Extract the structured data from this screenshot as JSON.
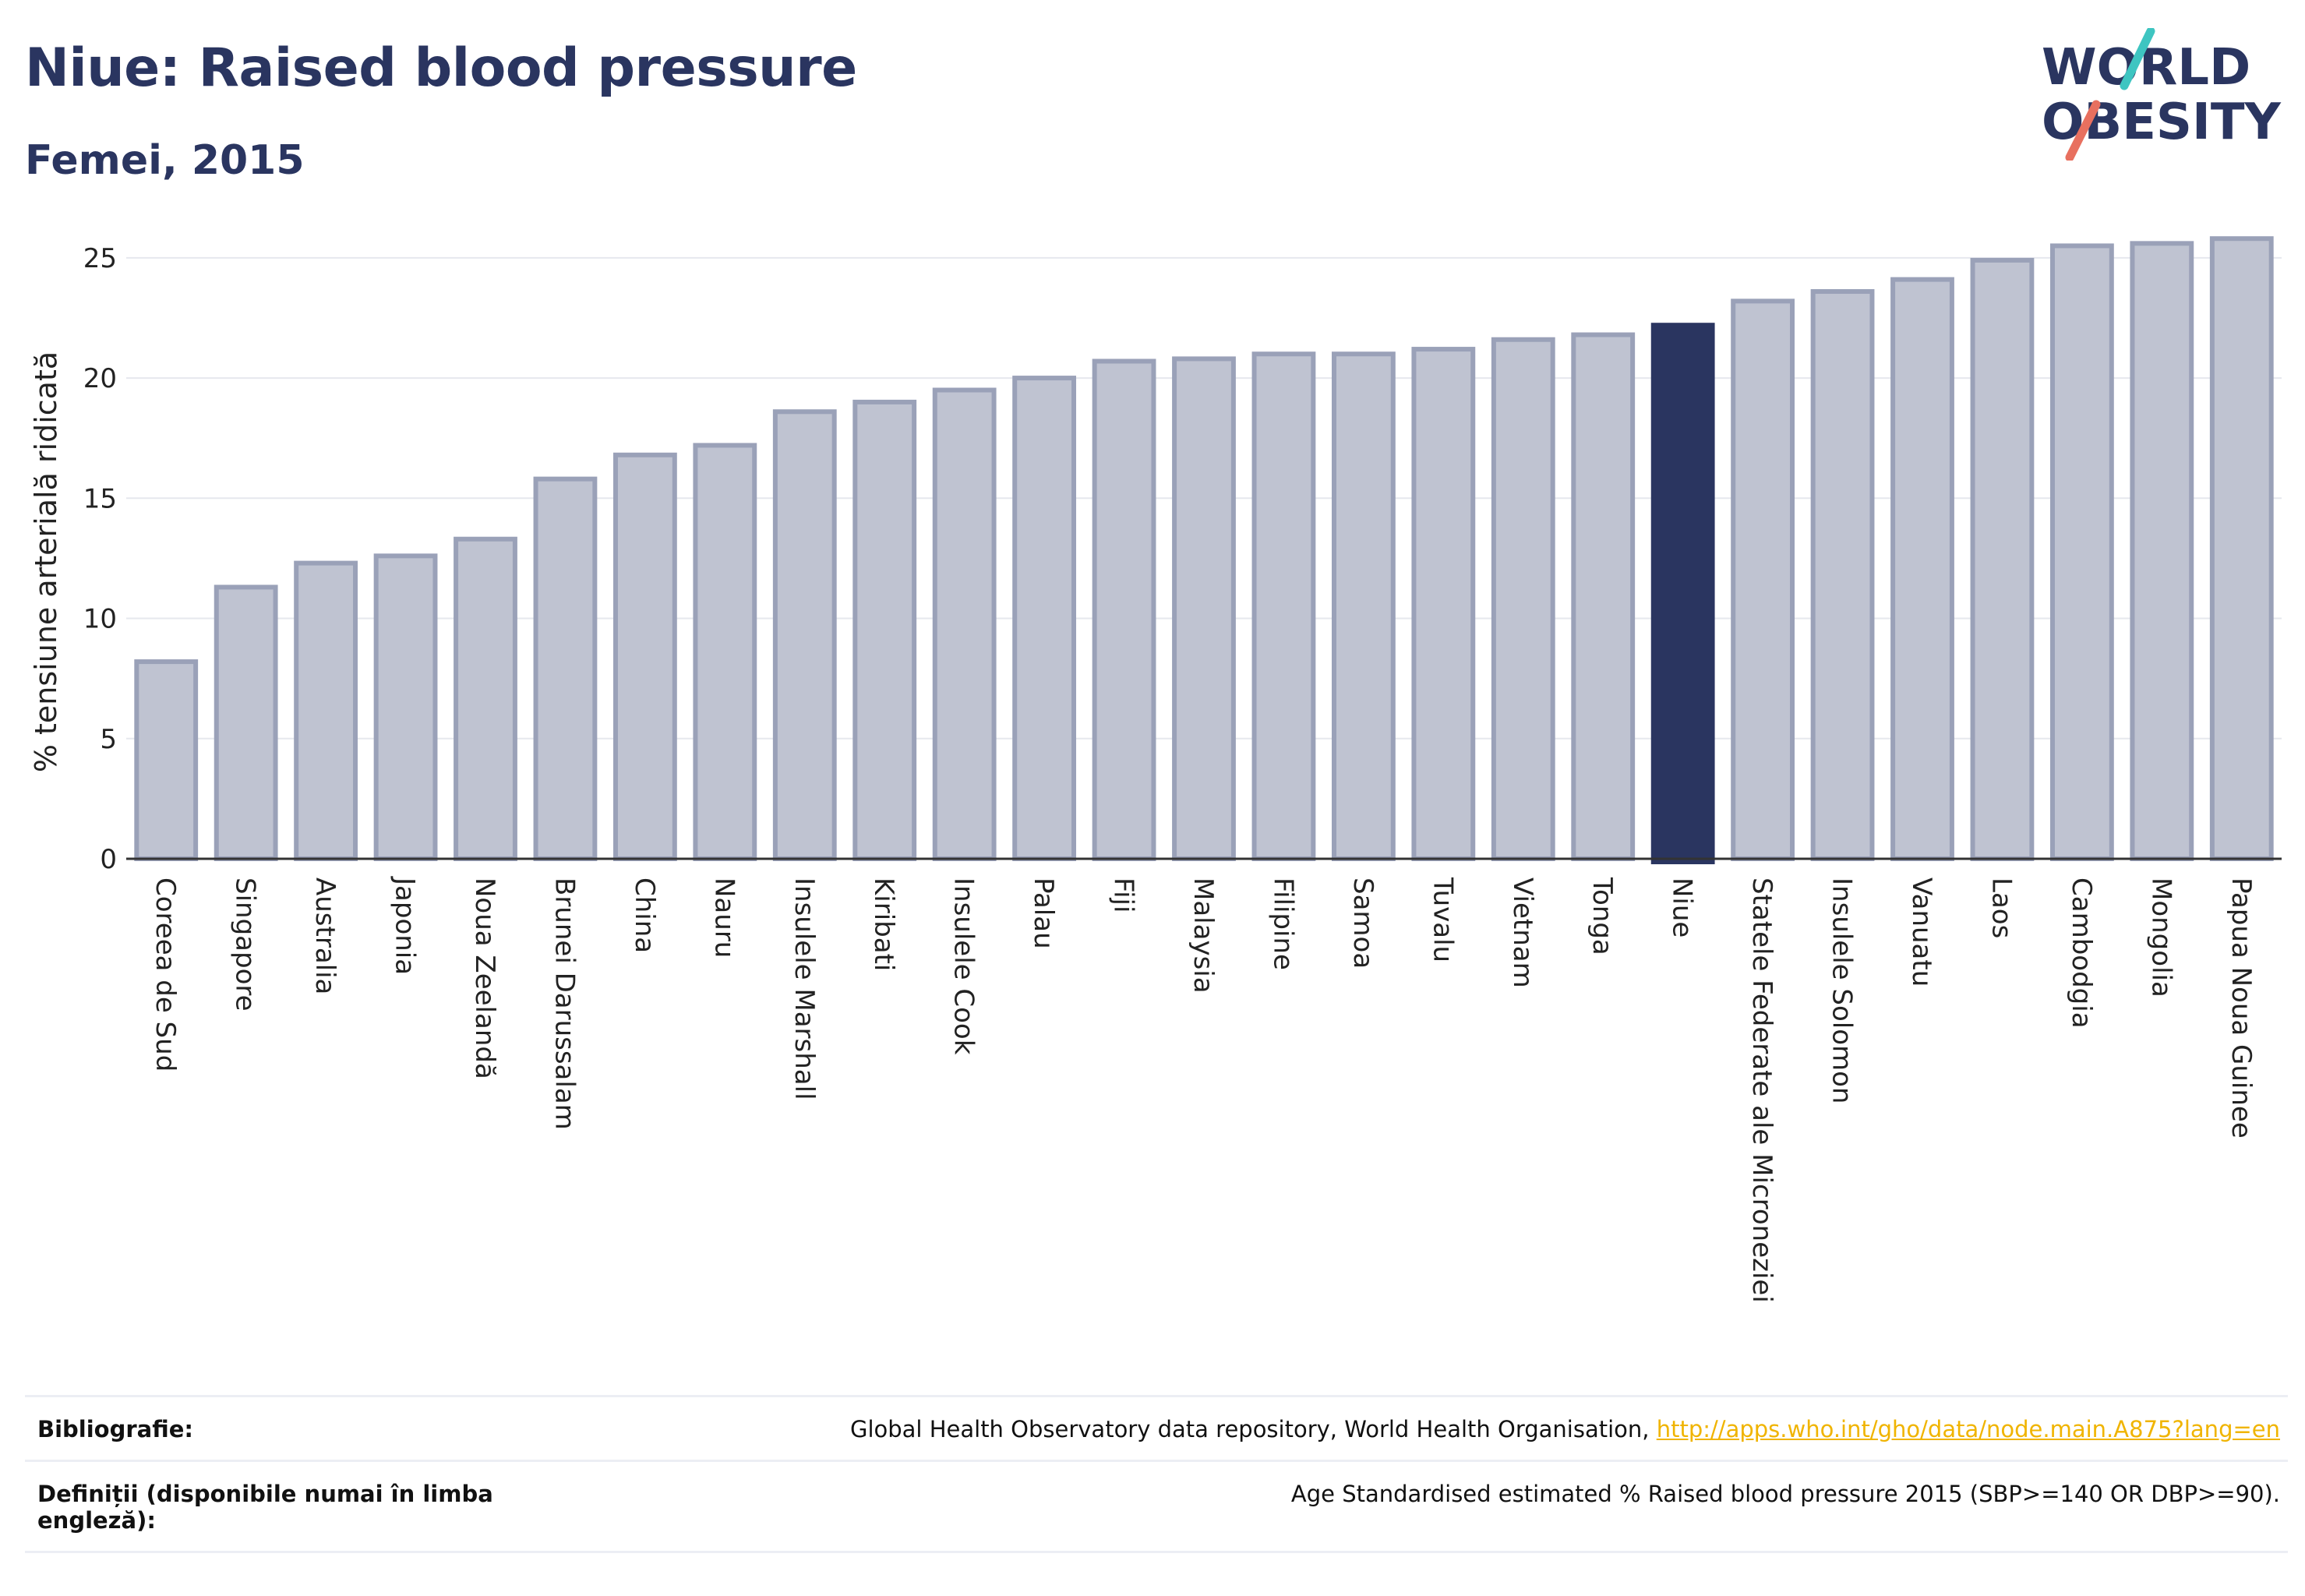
{
  "header": {
    "title": "Niue: Raised blood pressure",
    "subtitle": "Femei, 2015"
  },
  "logo": {
    "line1": "WORLD",
    "line2": "OBESITY",
    "accent_teal": "#3ec5c1",
    "accent_coral": "#e8705f",
    "text_color": "#2a3560"
  },
  "chart_data": {
    "type": "bar",
    "ylabel": "% tensiune arterială ridicată",
    "ylim": [
      0,
      26
    ],
    "yticks": [
      0,
      5,
      10,
      15,
      20,
      25
    ],
    "grid": true,
    "highlight": "Niue",
    "colors": {
      "bar": "#bfc3d1",
      "bar_edge": "#9aa1b8",
      "highlight": "#2a3560"
    },
    "categories": [
      "Coreea de Sud",
      "Singapore",
      "Australia",
      "Japonia",
      "Noua Zeelandă",
      "Brunei Darussalam",
      "China",
      "Nauru",
      "Insulele Marshall",
      "Kiribati",
      "Insulele Cook",
      "Palau",
      "Fiji",
      "Malaysia",
      "Filipine",
      "Samoa",
      "Tuvalu",
      "Vietnam",
      "Tonga",
      "Niue",
      "Statele Federate ale Microneziei",
      "Insulele Solomon",
      "Vanuatu",
      "Laos",
      "Cambodgia",
      "Mongolia",
      "Papua Noua Guinee"
    ],
    "values": [
      8.2,
      11.3,
      12.3,
      12.6,
      13.3,
      15.8,
      16.8,
      17.2,
      18.6,
      19.0,
      19.5,
      20.0,
      20.7,
      20.8,
      21.0,
      21.0,
      21.2,
      21.6,
      21.8,
      22.2,
      23.2,
      23.6,
      24.1,
      24.9,
      25.5,
      25.6,
      25.8
    ]
  },
  "footer": {
    "bibliography_label": "Bibliografie:",
    "bibliography_text": "Global Health Observatory data repository, World Health Organisation, ",
    "bibliography_link": "http://apps.who.int/gho/data/node.main.A875?lang=en",
    "definitions_label": "Definiții (disponibile numai în limba engleză):",
    "definitions_text": "Age Standardised estimated % Raised blood pressure 2015 (SBP>=140 OR DBP>=90)."
  }
}
